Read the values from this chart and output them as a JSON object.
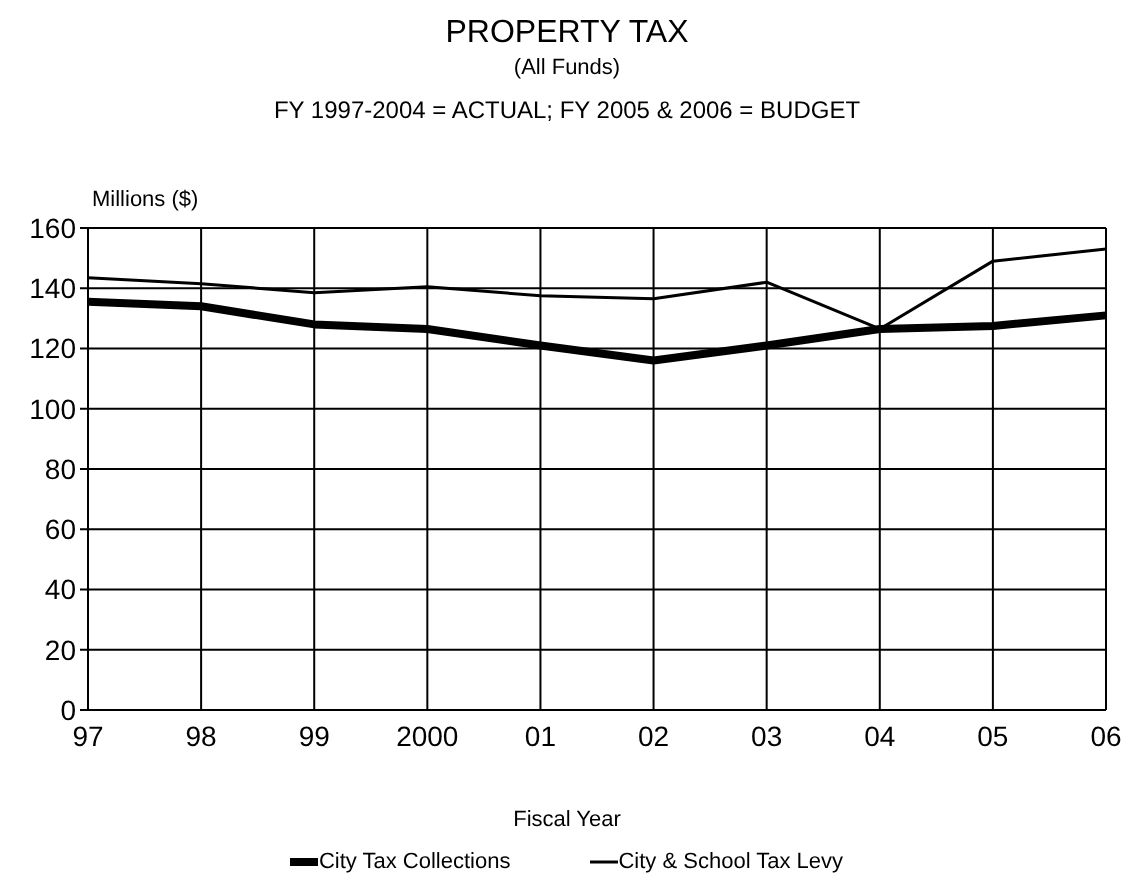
{
  "chart_data": {
    "type": "line",
    "title": "PROPERTY TAX",
    "subtitle": "(All Funds)",
    "annotations": [
      "FY 1997-2004 = ACTUAL; FY 2005 & 2006 = BUDGET"
    ],
    "xlabel": "Fiscal Year",
    "ylabel": "Millions ($)",
    "categories": [
      "97",
      "98",
      "99",
      "2000",
      "01",
      "02",
      "03",
      "04",
      "05",
      "06"
    ],
    "series": [
      {
        "name": "City Tax Collections",
        "color": "#000000",
        "values": [
          135.5,
          134,
          128,
          126.5,
          121,
          116,
          121,
          126.5,
          127.5,
          131
        ]
      },
      {
        "name": "City & School Tax Levy",
        "color": "#000000",
        "values": [
          143.5,
          141.5,
          138.5,
          140.5,
          137.5,
          136.5,
          142,
          126.5,
          149,
          153
        ]
      }
    ],
    "ylim": [
      0,
      160
    ],
    "yticks": [
      0,
      20,
      40,
      60,
      80,
      100,
      120,
      140,
      160
    ],
    "grid": true,
    "legend": "bottom",
    "marker": "none",
    "line_style": "solid"
  }
}
